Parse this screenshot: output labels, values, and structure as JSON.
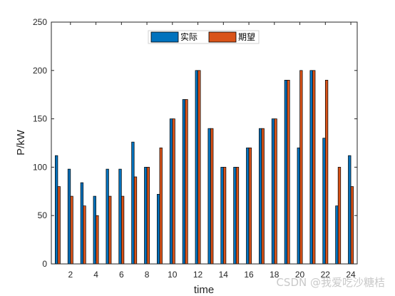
{
  "chart_data": {
    "type": "bar",
    "xlabel": "time",
    "ylabel": "P/kW",
    "ylim": [
      0,
      250
    ],
    "xlim": [
      0.5,
      24.5
    ],
    "yticks": [
      0,
      50,
      100,
      150,
      200,
      250
    ],
    "xticks": [
      2,
      4,
      6,
      8,
      10,
      12,
      14,
      16,
      18,
      20,
      22,
      24
    ],
    "categories": [
      1,
      2,
      3,
      4,
      5,
      6,
      7,
      8,
      9,
      10,
      11,
      12,
      13,
      14,
      15,
      16,
      17,
      18,
      19,
      20,
      21,
      22,
      23,
      24
    ],
    "legend_position": "top",
    "series": [
      {
        "name": "实际",
        "color": "#0072BD",
        "values": [
          112,
          98,
          84,
          70,
          98,
          98,
          126,
          100,
          72,
          150,
          170,
          200,
          140,
          100,
          100,
          120,
          140,
          150,
          190,
          120,
          200,
          130,
          60,
          112
        ]
      },
      {
        "name": "期望",
        "color": "#D95319",
        "values": [
          80,
          70,
          60,
          50,
          70,
          70,
          90,
          100,
          120,
          150,
          170,
          200,
          140,
          100,
          100,
          120,
          140,
          150,
          190,
          200,
          200,
          190,
          100,
          80
        ]
      }
    ]
  },
  "watermark": "CSDN @我爱吃沙糖桔"
}
